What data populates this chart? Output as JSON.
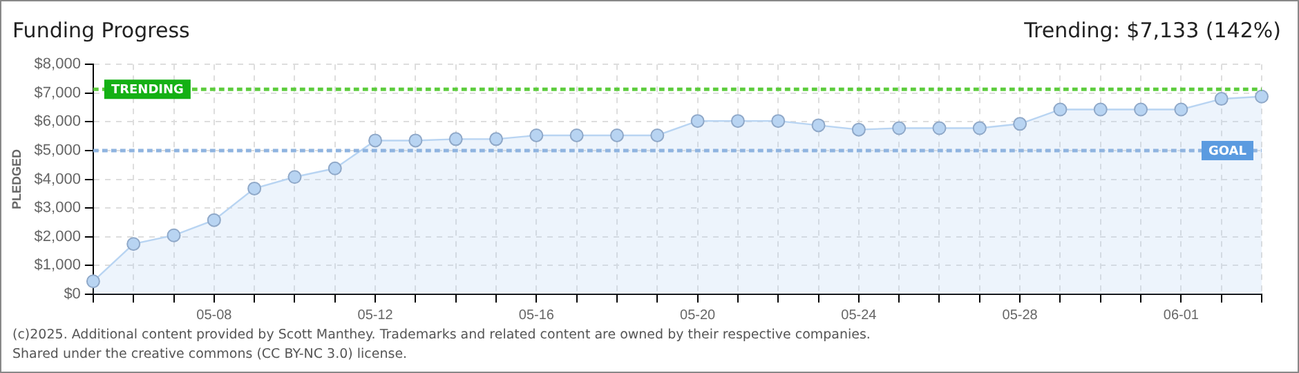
{
  "chart_data": {
    "type": "area",
    "title": "Funding Progress",
    "ylabel": "PLEDGED",
    "annotations": [
      "Trending: $7,133 (142%)",
      "(c)2025. Additional content provided by Scott Manthey. Trademarks and related content are owned by their respective companies.",
      "Shared under the creative commons (CC BY-NC 3.0) license."
    ],
    "categories": [
      null,
      null,
      null,
      "05-08",
      null,
      null,
      null,
      "05-12",
      null,
      null,
      null,
      "05-16",
      null,
      null,
      null,
      "05-20",
      null,
      null,
      null,
      "05-24",
      null,
      null,
      null,
      "05-28",
      null,
      null,
      null,
      "06-01",
      null,
      null
    ],
    "series": [
      {
        "color": "#b8d4f2",
        "values": [
          450,
          1750,
          2050,
          2580,
          3680,
          4080,
          4380,
          5350,
          5350,
          5400,
          5400,
          5530,
          5530,
          5530,
          5530,
          6030,
          6030,
          6030,
          5880,
          5730,
          5780,
          5780,
          5780,
          5930,
          6430,
          6430,
          6430,
          6430,
          6800,
          6880
        ]
      }
    ],
    "ylim": [
      0,
      8000
    ],
    "yticks": [
      {
        "value": 0,
        "label": "$0"
      },
      {
        "value": 1000,
        "label": "$1,000"
      },
      {
        "value": 2000,
        "label": "$2,000"
      },
      {
        "value": 3000,
        "label": "$3,000"
      },
      {
        "value": 4000,
        "label": "$4,000"
      },
      {
        "value": 5000,
        "label": "$5,000"
      },
      {
        "value": 6000,
        "label": "$6,000"
      },
      {
        "value": 7000,
        "label": "$7,000"
      },
      {
        "value": 8000,
        "label": "$8,000"
      }
    ],
    "ref_lines": [
      {
        "axis": "y",
        "value": 7133,
        "label": "TRENDING",
        "color": "#5ccc3c",
        "line_style": "dotted"
      },
      {
        "axis": "y",
        "value": 5000,
        "label": "GOAL",
        "color": "#8fb4e0",
        "line_style": "dotted"
      }
    ],
    "grid": true,
    "marker": "circle",
    "legend": false
  }
}
